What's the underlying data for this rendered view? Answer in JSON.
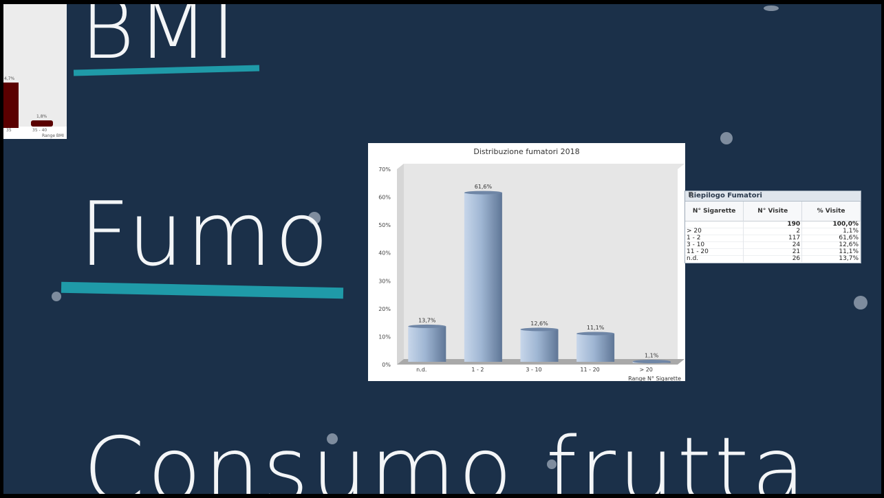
{
  "slide": {
    "heading_bmi": "BMI",
    "heading_fumo": "Fumo",
    "heading_frutta": "Consumo frutta",
    "underline_color": "#1f9aa8",
    "background_color": "#1b3049"
  },
  "bmi_fragment": {
    "labels": [
      "4,7%",
      "1,8%",
      "35",
      "35 - 40",
      "Range BMI"
    ]
  },
  "chart_data": {
    "type": "bar",
    "title": "Distribuzione fumatori 2018",
    "xlabel": "Range N° Sigarette",
    "ylabel": "",
    "categories": [
      "n.d.",
      "1 - 2",
      "3 - 10",
      "11 - 20",
      "> 20"
    ],
    "values": [
      13.7,
      61.6,
      12.6,
      11.1,
      1.1
    ],
    "value_labels": [
      "13,7%",
      "61,6%",
      "12,6%",
      "11,1%",
      "1,1%"
    ],
    "ylim": [
      0,
      70
    ],
    "yticks": [
      "0%",
      "10%",
      "20%",
      "30%",
      "40%",
      "50%",
      "60%",
      "70%"
    ],
    "bar_color": "#9fb6d3",
    "grid": false
  },
  "summary_table": {
    "title": "Riepilogo Fumatori",
    "columns": [
      "N° Sigarette",
      "N° Visite",
      "% Visite"
    ],
    "total": [
      "",
      "190",
      "100,0%"
    ],
    "rows": [
      [
        "> 20",
        "2",
        "1,1%"
      ],
      [
        "1 - 2",
        "117",
        "61,6%"
      ],
      [
        "3 - 10",
        "24",
        "12,6%"
      ],
      [
        "11 - 20",
        "21",
        "11,1%"
      ],
      [
        "n.d.",
        "26",
        "13,7%"
      ]
    ]
  }
}
